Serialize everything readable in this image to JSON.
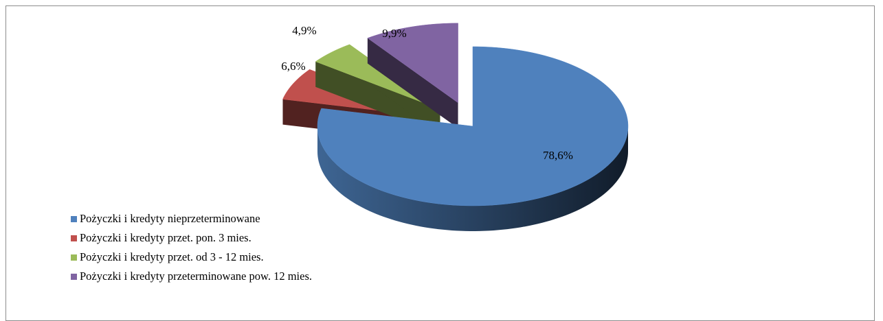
{
  "chart_data": {
    "type": "pie",
    "title": "",
    "style": "3d-exploded",
    "legend_position": "bottom-left",
    "slices": [
      {
        "name": "Pożyczki i kredyty nieprzeterminowane",
        "value": 78.6,
        "label": "78,6%",
        "color": "#4F81BD"
      },
      {
        "name": "Pożyczki i kredyty przet. pon. 3 mies.",
        "value": 6.6,
        "label": "6,6%",
        "color": "#C0504D"
      },
      {
        "name": "Pożyczki i kredyty przet. od 3 - 12 mies.",
        "value": 4.9,
        "label": "4,9%",
        "color": "#9BBB59"
      },
      {
        "name": "Pożyczki i kredyty przeterminowane pow. 12 mies.",
        "value": 9.9,
        "label": "9,9%",
        "color": "#8064A2"
      }
    ]
  }
}
